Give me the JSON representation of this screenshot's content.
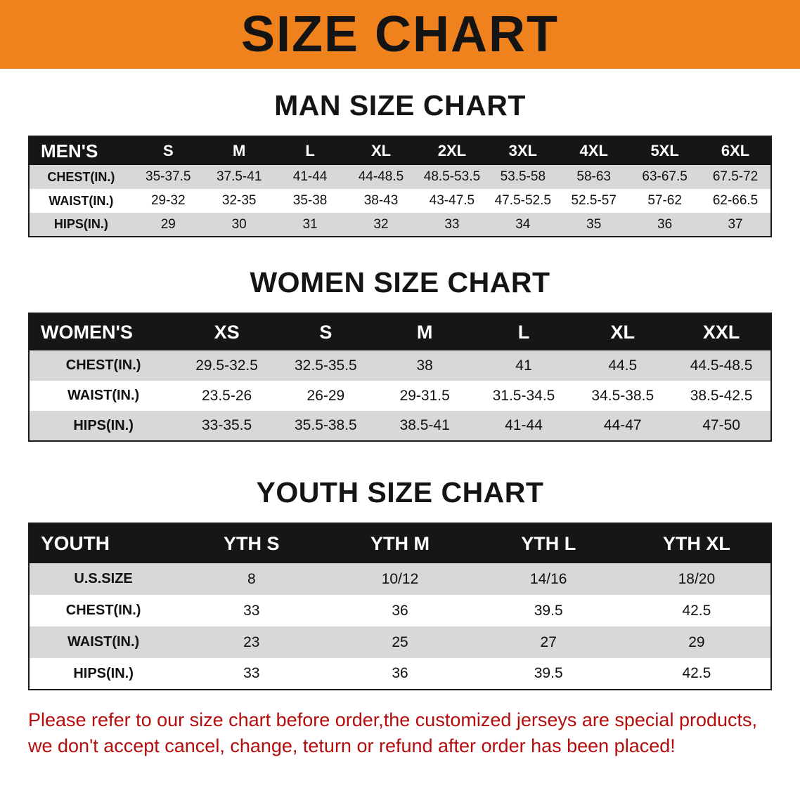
{
  "banner": {
    "title": "SIZE CHART",
    "bg_color": "#F0821E",
    "text_color": "#141414"
  },
  "men": {
    "heading": "MAN SIZE CHART",
    "table": {
      "header": [
        "MEN'S",
        "S",
        "M",
        "L",
        "XL",
        "2XL",
        "3XL",
        "4XL",
        "5XL",
        "6XL"
      ],
      "rows": [
        [
          "CHEST(IN.)",
          "35-37.5",
          "37.5-41",
          "41-44",
          "44-48.5",
          "48.5-53.5",
          "53.5-58",
          "58-63",
          "63-67.5",
          "67.5-72"
        ],
        [
          "WAIST(IN.)",
          "29-32",
          "32-35",
          "35-38",
          "38-43",
          "43-47.5",
          "47.5-52.5",
          "52.5-57",
          "57-62",
          "62-66.5"
        ],
        [
          "HIPS(IN.)",
          "29",
          "30",
          "31",
          "32",
          "33",
          "34",
          "35",
          "36",
          "37"
        ]
      ]
    }
  },
  "women": {
    "heading": "WOMEN SIZE CHART",
    "table": {
      "header": [
        "WOMEN'S",
        "XS",
        "S",
        "M",
        "L",
        "XL",
        "XXL"
      ],
      "rows": [
        [
          "CHEST(IN.)",
          "29.5-32.5",
          "32.5-35.5",
          "38",
          "41",
          "44.5",
          "44.5-48.5"
        ],
        [
          "WAIST(IN.)",
          "23.5-26",
          "26-29",
          "29-31.5",
          "31.5-34.5",
          "34.5-38.5",
          "38.5-42.5"
        ],
        [
          "HIPS(IN.)",
          "33-35.5",
          "35.5-38.5",
          "38.5-41",
          "41-44",
          "44-47",
          "47-50"
        ]
      ]
    }
  },
  "youth": {
    "heading": "YOUTH SIZE CHART",
    "table": {
      "header": [
        "YOUTH",
        "YTH S",
        "YTH M",
        "YTH L",
        "YTH XL"
      ],
      "rows": [
        [
          "U.S.SIZE",
          "8",
          "10/12",
          "14/16",
          "18/20"
        ],
        [
          "CHEST(IN.)",
          "33",
          "36",
          "39.5",
          "42.5"
        ],
        [
          "WAIST(IN.)",
          "23",
          "25",
          "27",
          "29"
        ],
        [
          "HIPS(IN.)",
          "33",
          "36",
          "39.5",
          "42.5"
        ]
      ]
    }
  },
  "disclaimer": {
    "line1": "Please refer to our size chart before order,the customized jerseys are special products,",
    "line2": "we don't accept cancel, change, teturn or refund after order has been placed!",
    "text_color": "#B50D0D"
  }
}
